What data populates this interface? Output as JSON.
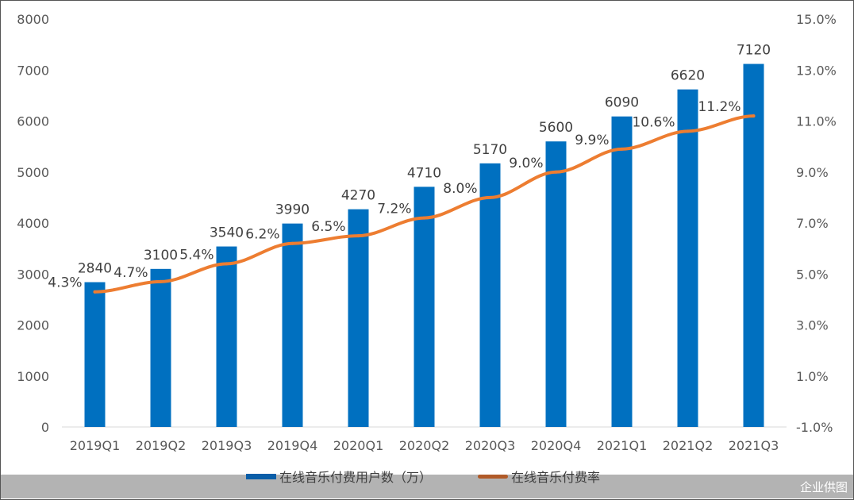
{
  "chart_data": {
    "type": "bar+line",
    "categories": [
      "2019Q1",
      "2019Q2",
      "2019Q3",
      "2019Q4",
      "2020Q1",
      "2020Q2",
      "2020Q3",
      "2020Q4",
      "2021Q1",
      "2021Q2",
      "2021Q3"
    ],
    "series": [
      {
        "name": "在线音乐付费用户数（万）",
        "type": "bar",
        "axis": "left",
        "color": "#0070c0",
        "values": [
          2840,
          3100,
          3540,
          3990,
          4270,
          4710,
          5170,
          5600,
          6090,
          6620,
          7120
        ],
        "labels": [
          "2840",
          "3100",
          "3540",
          "3990",
          "4270",
          "4710",
          "5170",
          "5600",
          "6090",
          "6620",
          "7120"
        ]
      },
      {
        "name": "在线音乐付费率",
        "type": "line",
        "axis": "right",
        "color": "#ed7d31",
        "values": [
          4.3,
          4.7,
          5.4,
          6.2,
          6.5,
          7.2,
          8.0,
          9.0,
          9.9,
          10.6,
          11.2
        ],
        "labels": [
          "4.3%",
          "4.7%",
          "5.4%",
          "6.2%",
          "6.5%",
          "7.2%",
          "8.0%",
          "9.0%",
          "9.9%",
          "10.6%",
          "11.2%"
        ]
      }
    ],
    "y_left": {
      "range": [
        0,
        8000
      ],
      "ticks": [
        "0",
        "1000",
        "2000",
        "3000",
        "4000",
        "5000",
        "6000",
        "7000",
        "8000"
      ]
    },
    "y_right": {
      "range": [
        -1.0,
        15.0
      ],
      "ticks": [
        "-1.0%",
        "1.0%",
        "3.0%",
        "5.0%",
        "7.0%",
        "9.0%",
        "11.0%",
        "13.0%",
        "15.0%"
      ]
    },
    "grid": false,
    "legend": "bottom"
  },
  "watermark": "企业供图"
}
